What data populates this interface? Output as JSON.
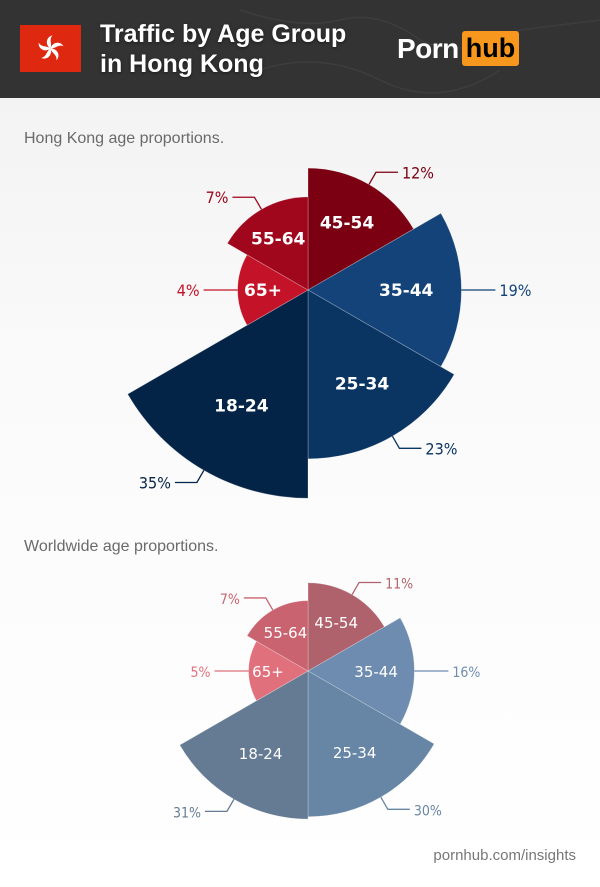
{
  "header": {
    "title_line1": "Traffic by Age Group",
    "title_line2": "in Hong Kong",
    "flag_icon": "hong-kong-flag",
    "logo": {
      "part1": "Porn",
      "part2": "hub",
      "accent": "#f7971d"
    }
  },
  "sections": {
    "hong_kong": "Hong Kong age proportions.",
    "worldwide": "Worldwide age proportions."
  },
  "footer": {
    "source": "pornhub.com/insights"
  },
  "chart_data": [
    {
      "type": "polar-area",
      "title": "Hong Kong age proportions.",
      "categories": [
        "45-54",
        "35-44",
        "25-34",
        "18-24",
        "65+",
        "55-64"
      ],
      "values": [
        12,
        19,
        23,
        35,
        4,
        7
      ],
      "unit": "%",
      "colors": [
        "#7a0012",
        "#134379",
        "#0a3462",
        "#042447",
        "#c41328",
        "#a0061c"
      ]
    },
    {
      "type": "polar-area",
      "title": "Worldwide age proportions.",
      "categories": [
        "45-54",
        "35-44",
        "25-34",
        "18-24",
        "65+",
        "55-64"
      ],
      "values": [
        11,
        16,
        30,
        31,
        5,
        7
      ],
      "unit": "%",
      "colors": [
        "#b0626c",
        "#6d8cb0",
        "#6785a5",
        "#647b93",
        "#e0707c",
        "#c9636f"
      ]
    }
  ]
}
